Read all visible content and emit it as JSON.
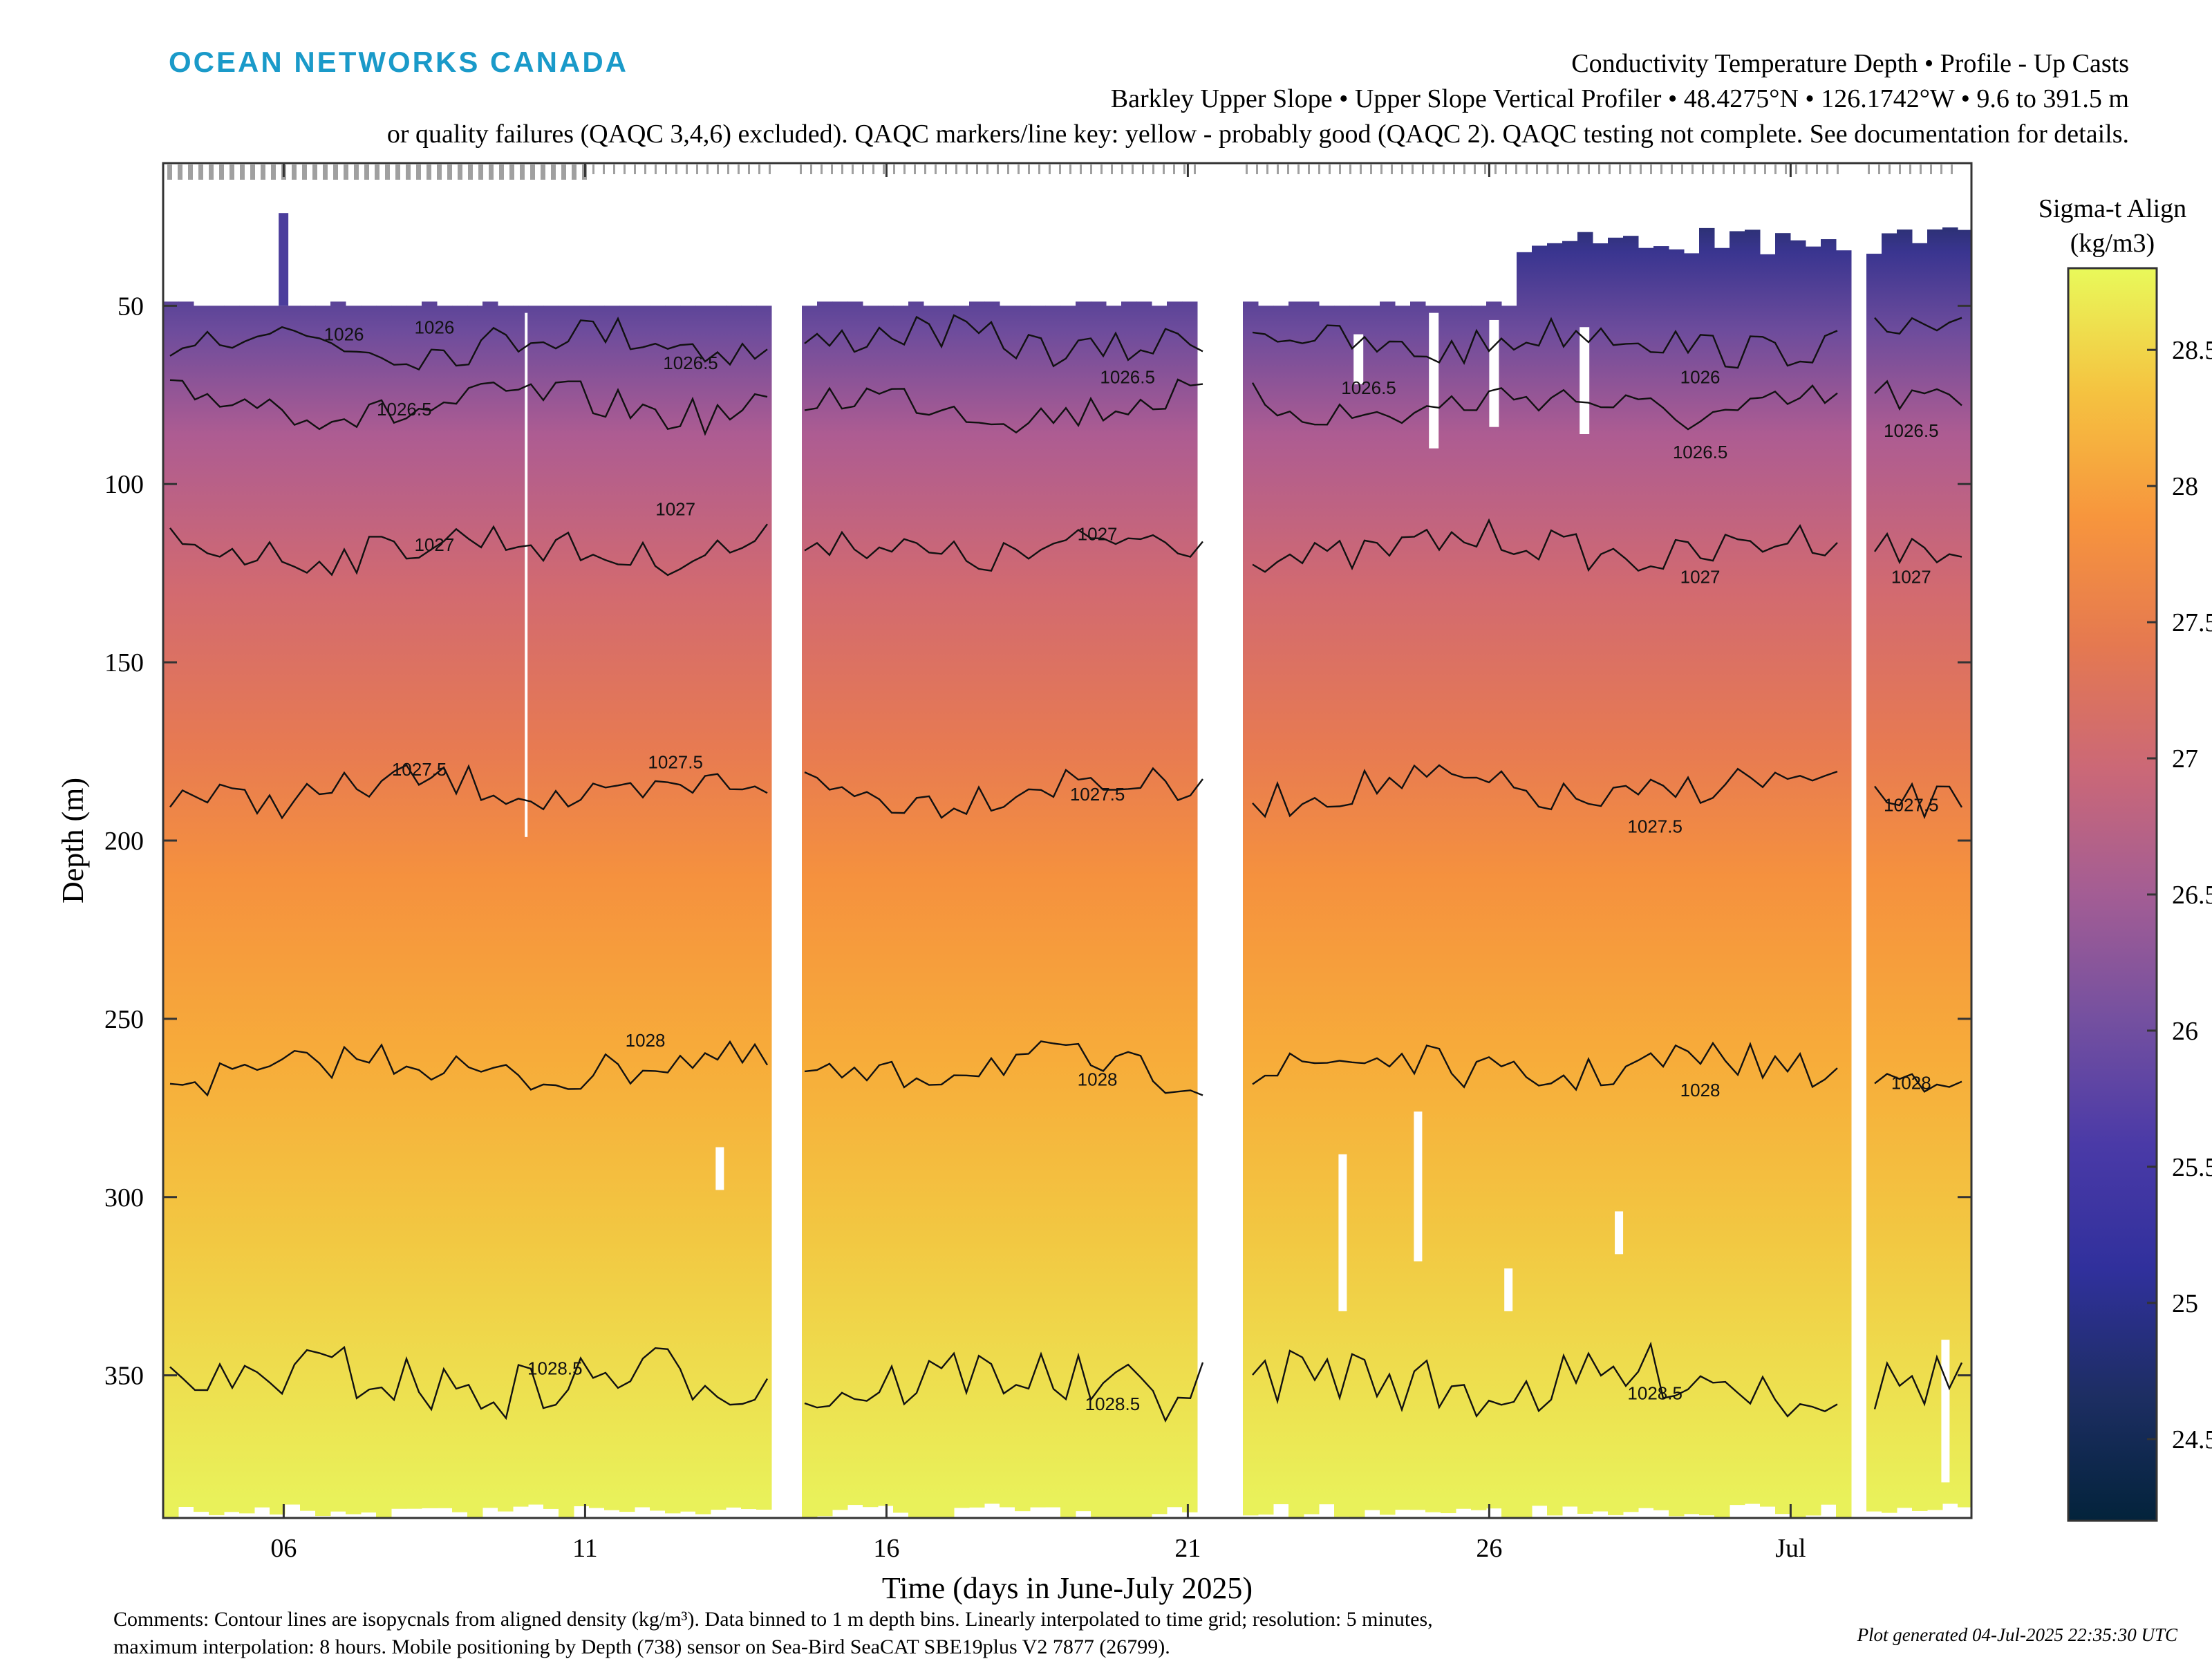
{
  "header": {
    "brand": "OCEAN NETWORKS CANADA",
    "title_line1": "Conductivity Temperature Depth • Profile - Up Casts",
    "title_line2": "Barkley Upper Slope • Upper Slope Vertical Profiler • 48.4275°N • 126.1742°W • 9.6 to 391.5 m",
    "title_line3": "or quality failures (QAQC 3,4,6) excluded). QAQC markers/line key: yellow - probably good (QAQC 2). QAQC testing not complete. See documentation for details."
  },
  "footer": {
    "comments_line1": "Comments: Contour lines are isopycnals from aligned density (kg/m³). Data binned to 1 m depth bins. Linearly interpolated to time grid; resolution: 5 minutes,",
    "comments_line2": "maximum interpolation: 8 hours. Mobile positioning by Depth (738) sensor on Sea-Bird SeaCAT SBE19plus V2 7877 (26799).",
    "generated": "Plot generated 04-Jul-2025 22:35:30 UTC"
  },
  "colors": {
    "brand": "#1a9ac9",
    "contour": "#111111",
    "qaqc_marker": "#a0a0a0"
  },
  "chart_data": {
    "type": "heatmap",
    "xlabel": "Time (days in June-July 2025)",
    "ylabel": "Depth (m)",
    "xlim": [
      "2025-06-04",
      "2025-07-04"
    ],
    "ylim": [
      10,
      390
    ],
    "y_reversed": true,
    "xticks": [
      {
        "date": "2025-06-06",
        "label": "06"
      },
      {
        "date": "2025-06-11",
        "label": "11"
      },
      {
        "date": "2025-06-16",
        "label": "16"
      },
      {
        "date": "2025-06-21",
        "label": "21"
      },
      {
        "date": "2025-06-26",
        "label": "26"
      },
      {
        "date": "2025-07-01",
        "label": "Jul"
      }
    ],
    "yticks": [
      50,
      100,
      150,
      200,
      250,
      300,
      350
    ],
    "colorbar": {
      "title_line1": "Sigma-t Align",
      "title_line2": "(kg/m3)",
      "range": [
        24.2,
        28.8
      ],
      "ticks": [
        24.5,
        25,
        25.5,
        26,
        26.5,
        27,
        27.5,
        28,
        28.5
      ],
      "tick_labels": [
        "24.5",
        "25",
        "25.5",
        "26",
        "26.5",
        "27",
        "27.5",
        "28",
        "28.5"
      ],
      "colormap": "thermal"
    },
    "data_gaps": [
      {
        "start": "2025-06-14T02:00",
        "end": "2025-06-14T12:00"
      },
      {
        "start": "2025-06-21T06:00",
        "end": "2025-06-21T22:00"
      },
      {
        "start": "2025-07-01T22:00",
        "end": "2025-07-02T06:00"
      }
    ],
    "surface_depth": {
      "early": 50,
      "late": 28
    },
    "bottom_depth": 386,
    "isopycnals": [
      {
        "label": "1026",
        "depth": 60
      },
      {
        "label": "1026.5",
        "depth": 78
      },
      {
        "label": "1027",
        "depth": 118
      },
      {
        "label": "1027.5",
        "depth": 186
      },
      {
        "label": "1028",
        "depth": 264
      },
      {
        "label": "1028.5",
        "depth": 352
      }
    ],
    "contour_labels": [
      {
        "text": "1026",
        "date": "2025-06-07T00:00",
        "depth": 58
      },
      {
        "text": "1026",
        "date": "2025-06-08T12:00",
        "depth": 56
      },
      {
        "text": "1026.5",
        "date": "2025-06-08T00:00",
        "depth": 79
      },
      {
        "text": "1026.5",
        "date": "2025-06-12T18:00",
        "depth": 66
      },
      {
        "text": "1026.5",
        "date": "2025-06-20T00:00",
        "depth": 70
      },
      {
        "text": "1026.5",
        "date": "2025-06-24T00:00",
        "depth": 73
      },
      {
        "text": "1026",
        "date": "2025-06-29T12:00",
        "depth": 70
      },
      {
        "text": "1026.5",
        "date": "2025-06-29T12:00",
        "depth": 91
      },
      {
        "text": "1026.5",
        "date": "2025-07-03T00:00",
        "depth": 85
      },
      {
        "text": "1027",
        "date": "2025-06-08T12:00",
        "depth": 117
      },
      {
        "text": "1027",
        "date": "2025-06-12T12:00",
        "depth": 107
      },
      {
        "text": "1027",
        "date": "2025-06-19T12:00",
        "depth": 114
      },
      {
        "text": "1027",
        "date": "2025-06-29T12:00",
        "depth": 126
      },
      {
        "text": "1027",
        "date": "2025-07-03T00:00",
        "depth": 126
      },
      {
        "text": "1027.5",
        "date": "2025-06-08T06:00",
        "depth": 180
      },
      {
        "text": "1027.5",
        "date": "2025-06-12T12:00",
        "depth": 178
      },
      {
        "text": "1027.5",
        "date": "2025-06-19T12:00",
        "depth": 187
      },
      {
        "text": "1027.5",
        "date": "2025-06-28T18:00",
        "depth": 196
      },
      {
        "text": "1027.5",
        "date": "2025-07-03T00:00",
        "depth": 190
      },
      {
        "text": "1028",
        "date": "2025-06-12T00:00",
        "depth": 256
      },
      {
        "text": "1028",
        "date": "2025-06-19T12:00",
        "depth": 267
      },
      {
        "text": "1028",
        "date": "2025-06-29T12:00",
        "depth": 270
      },
      {
        "text": "1028",
        "date": "2025-07-03T00:00",
        "depth": 268
      },
      {
        "text": "1028.5",
        "date": "2025-06-10T12:00",
        "depth": 348
      },
      {
        "text": "1028.5",
        "date": "2025-06-19T18:00",
        "depth": 358
      },
      {
        "text": "1028.5",
        "date": "2025-06-28T18:00",
        "depth": 355
      }
    ]
  }
}
